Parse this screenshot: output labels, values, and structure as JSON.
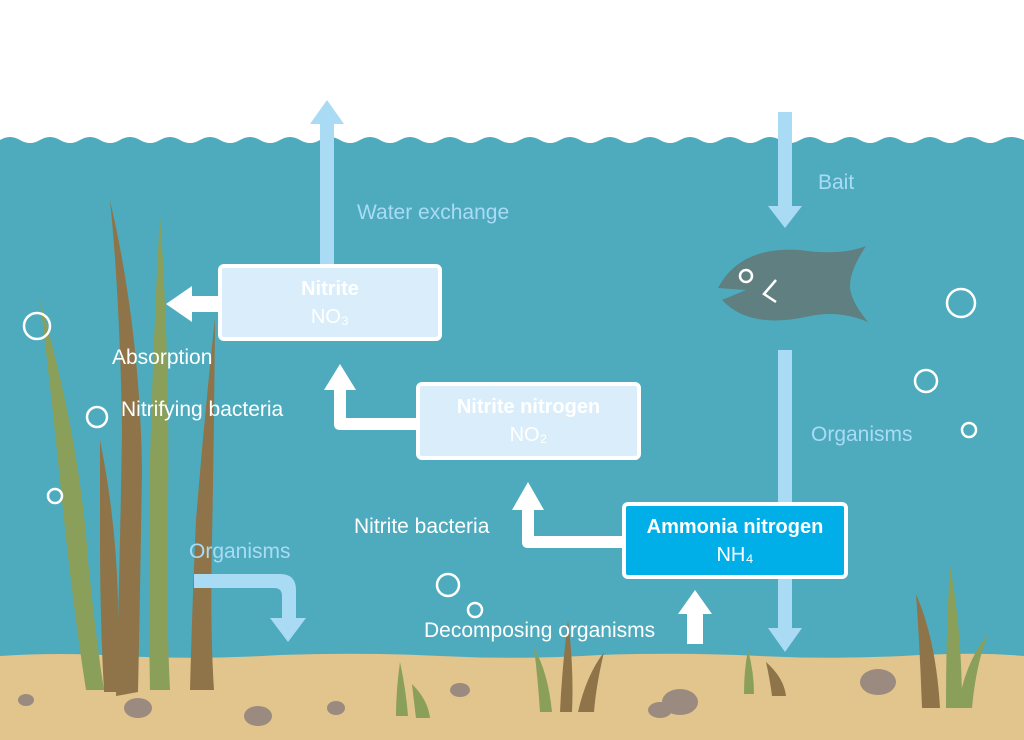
{
  "colors": {
    "water": "#4eabbd",
    "sand": "#e2c48d",
    "flow_arrow": "#a9dbf5",
    "reaction_arrow": "#ffffff",
    "ammonia_box": "#00aee8",
    "pale_box": "#d9eefa",
    "fish": "#5f7f80",
    "grass_green": "#8a9f5a",
    "grass_brown": "#8e7448",
    "stone": "#9b8a7f"
  },
  "boxes": {
    "nitrite": {
      "title": "Nitrite",
      "formula": "NO₃"
    },
    "nitrite_nitrogen": {
      "title": "Nitrite nitrogen",
      "formula": "NO₂"
    },
    "ammonia_nitrogen": {
      "title": "Ammonia nitrogen",
      "formula": "NH₄"
    }
  },
  "labels": {
    "water_exchange": "Water exchange",
    "bait": "Bait",
    "absorption": "Absorption",
    "nitrifying_bacteria": "Nitrifying bacteria",
    "organisms_right": "Organisms",
    "nitrite_bacteria": "Nitrite bacteria",
    "organisms_left": "Organisms",
    "decomposing_organisms": "Decomposing organisms"
  },
  "icons": [
    "fish-icon",
    "bubble-icon",
    "seagrass-icon",
    "stone-icon"
  ]
}
